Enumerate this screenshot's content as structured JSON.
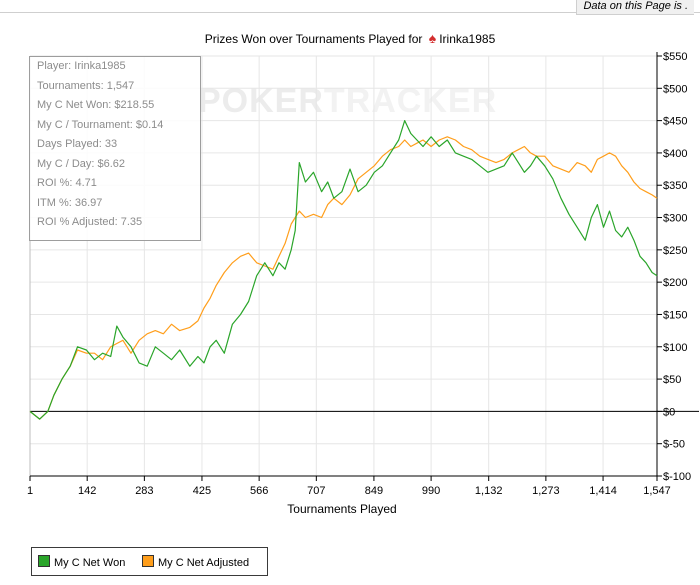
{
  "topbar": {
    "note": "Data on this Page is ."
  },
  "title": {
    "prefix": "Prizes Won over Tournaments Played for",
    "player": "Irinka1985"
  },
  "watermark": {
    "part1": "POKER",
    "part2": "TRACKER"
  },
  "stats": [
    "Player: Irinka1985",
    "Tournaments: 1,547",
    "My C Net Won: $218.55",
    "My C / Tournament: $0.14",
    "Days Played: 33",
    "My C / Day: $6.62",
    "ROI %: 4.71",
    "ITM %: 36.97",
    "ROI % Adjusted: 7.35"
  ],
  "legend": [
    {
      "name": "My C Net Won",
      "color": "#2aa52a"
    },
    {
      "name": "My C Net Adjusted",
      "color": "#ff9e1b"
    }
  ],
  "chart_data": {
    "type": "line",
    "title": "Prizes Won over Tournaments Played for Irinka1985",
    "xlabel": "Tournaments Played",
    "ylabel": "",
    "xlim": [
      1,
      1547
    ],
    "ylim": [
      -100,
      550
    ],
    "x_ticks": [
      1,
      142,
      283,
      425,
      566,
      707,
      849,
      990,
      1132,
      1273,
      1414,
      1547
    ],
    "x_tick_labels": [
      "1",
      "142",
      "283",
      "425",
      "566",
      "707",
      "849",
      "990",
      "1,132",
      "1,273",
      "1,414",
      "1,547"
    ],
    "y_ticks": [
      -100,
      -50,
      0,
      50,
      100,
      150,
      200,
      250,
      300,
      350,
      400,
      450,
      500,
      550
    ],
    "y_tick_labels": [
      "$-100",
      "$-50",
      "$0",
      "$50",
      "$100",
      "$150",
      "$200",
      "$250",
      "$300",
      "$350",
      "$400",
      "$450",
      "$500",
      "$550"
    ],
    "grid": true,
    "zero_line": true,
    "legend_position": "bottom-left",
    "series": [
      {
        "name": "My C Net Won",
        "color": "#2aa52a",
        "x": [
          1,
          25,
          45,
          60,
          80,
          100,
          118,
          140,
          160,
          180,
          200,
          215,
          230,
          250,
          270,
          290,
          310,
          330,
          350,
          370,
          395,
          415,
          430,
          445,
          460,
          480,
          500,
          520,
          540,
          560,
          580,
          600,
          615,
          630,
          645,
          655,
          665,
          680,
          700,
          720,
          735,
          750,
          770,
          790,
          810,
          830,
          850,
          870,
          890,
          910,
          925,
          940,
          955,
          970,
          990,
          1010,
          1030,
          1050,
          1070,
          1090,
          1110,
          1130,
          1150,
          1170,
          1190,
          1205,
          1220,
          1235,
          1250,
          1270,
          1290,
          1310,
          1330,
          1350,
          1370,
          1385,
          1400,
          1415,
          1430,
          1445,
          1460,
          1475,
          1490,
          1505,
          1520,
          1535,
          1547
        ],
        "y": [
          0,
          -12,
          0,
          25,
          50,
          70,
          100,
          95,
          80,
          90,
          85,
          132,
          115,
          100,
          75,
          70,
          100,
          90,
          80,
          95,
          70,
          85,
          75,
          100,
          110,
          90,
          135,
          150,
          170,
          210,
          230,
          210,
          230,
          220,
          250,
          280,
          385,
          355,
          370,
          340,
          355,
          330,
          340,
          375,
          340,
          350,
          370,
          380,
          400,
          420,
          450,
          430,
          420,
          410,
          425,
          410,
          420,
          400,
          395,
          390,
          380,
          370,
          375,
          380,
          400,
          385,
          370,
          380,
          395,
          380,
          360,
          330,
          305,
          285,
          265,
          300,
          320,
          285,
          310,
          280,
          270,
          285,
          265,
          240,
          230,
          215,
          210
        ]
      },
      {
        "name": "My C Net Adjusted",
        "color": "#ff9e1b",
        "x": [
          1,
          25,
          45,
          60,
          80,
          100,
          118,
          140,
          160,
          180,
          200,
          215,
          230,
          250,
          270,
          290,
          310,
          330,
          350,
          370,
          395,
          415,
          430,
          445,
          460,
          480,
          500,
          520,
          540,
          560,
          580,
          600,
          615,
          630,
          645,
          655,
          665,
          680,
          700,
          720,
          735,
          750,
          770,
          790,
          810,
          830,
          850,
          870,
          890,
          910,
          925,
          940,
          955,
          970,
          990,
          1010,
          1030,
          1050,
          1070,
          1090,
          1110,
          1130,
          1150,
          1170,
          1190,
          1205,
          1220,
          1235,
          1250,
          1270,
          1290,
          1310,
          1330,
          1350,
          1370,
          1385,
          1400,
          1415,
          1430,
          1445,
          1460,
          1475,
          1490,
          1505,
          1520,
          1535,
          1547
        ],
        "y": [
          0,
          -12,
          0,
          25,
          50,
          70,
          95,
          90,
          90,
          80,
          100,
          105,
          110,
          90,
          110,
          120,
          125,
          120,
          135,
          125,
          130,
          140,
          160,
          175,
          195,
          215,
          230,
          240,
          245,
          230,
          225,
          220,
          240,
          260,
          290,
          300,
          310,
          300,
          305,
          300,
          320,
          330,
          320,
          335,
          360,
          370,
          380,
          395,
          405,
          410,
          420,
          410,
          415,
          420,
          410,
          420,
          425,
          420,
          410,
          405,
          395,
          390,
          385,
          390,
          400,
          405,
          410,
          400,
          395,
          395,
          380,
          375,
          370,
          385,
          380,
          370,
          390,
          395,
          400,
          395,
          380,
          370,
          355,
          345,
          340,
          335,
          330
        ]
      }
    ]
  }
}
